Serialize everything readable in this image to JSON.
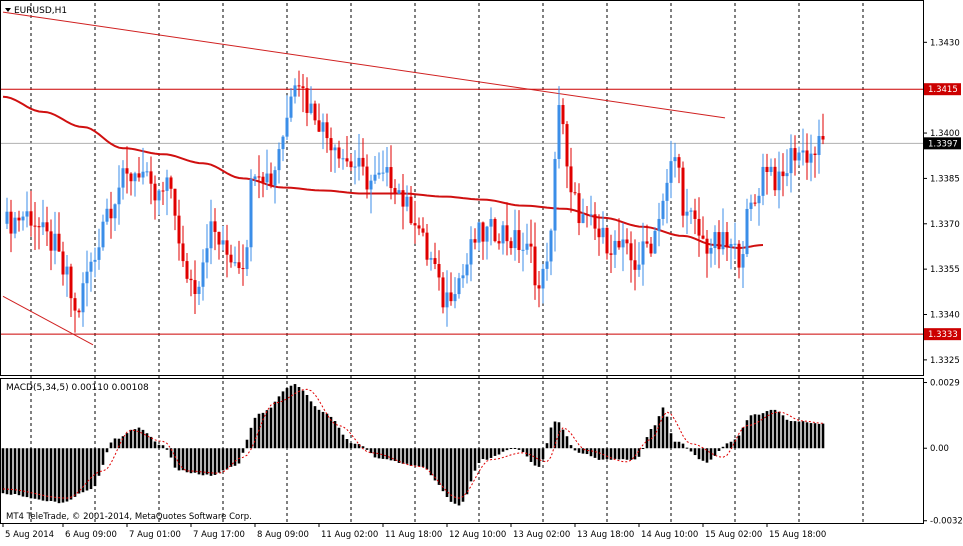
{
  "chart_data": {
    "type": "candlestick",
    "symbol_label": "EURUSD,H1",
    "copyright": "MT4 TeleTrade, © 2001-2014, MetaQuotes Software Corp.",
    "colors": {
      "bull": "#3b8ee8",
      "bear": "#e00000",
      "ma": "#d01010",
      "level": "#cc0000",
      "trendline": "#d02020",
      "current_line": "#b0b0b0",
      "grid": "#000000",
      "macd_bar": "#000000",
      "macd_signal": "#e00000"
    },
    "price_axis": {
      "ylim": [
        1.332,
        1.3443
      ],
      "ticks": [
        "1.3430",
        "1.3415",
        "1.3400",
        "1.3385",
        "1.3370",
        "1.3355",
        "1.3340",
        "1.3325"
      ],
      "tick_values": [
        1.343,
        1.3415,
        1.34,
        1.3385,
        1.337,
        1.3355,
        1.334,
        1.3325
      ]
    },
    "price_labels": [
      {
        "text": "1.3415",
        "value": 1.34145,
        "style": "red"
      },
      {
        "text": "1.3397",
        "value": 1.33966,
        "style": "black"
      },
      {
        "text": "1.3333",
        "value": 1.33335,
        "style": "red"
      }
    ],
    "horizontal_levels": [
      1.34145,
      1.33335
    ],
    "current_price": 1.33966,
    "trendlines": [
      {
        "bar": [
          0,
          180
        ],
        "price": [
          1.344,
          1.3405
        ]
      },
      {
        "bar": [
          0,
          22
        ],
        "price": [
          1.3346,
          1.333
        ]
      }
    ],
    "time_axis": {
      "labels": [
        "5 Aug 2014",
        "6 Aug 09:00",
        "7 Aug 01:00",
        "7 Aug 17:00",
        "8 Aug 09:00",
        "11 Aug 02:00",
        "11 Aug 18:00",
        "12 Aug 10:00",
        "13 Aug 02:00",
        "13 Aug 18:00",
        "14 Aug 10:00",
        "15 Aug 02:00",
        "15 Aug 18:00"
      ],
      "label_bars": [
        0,
        15,
        31,
        47,
        63,
        79,
        95,
        111,
        127,
        143,
        159,
        175,
        191
      ],
      "grid_bars": [
        7,
        23,
        39,
        55,
        71,
        87,
        103,
        119,
        135,
        151,
        167,
        183,
        199,
        215
      ]
    },
    "ma_points": [
      [
        0,
        1.3412
      ],
      [
        10,
        1.3407
      ],
      [
        20,
        1.3402
      ],
      [
        30,
        1.3395
      ],
      [
        40,
        1.3393
      ],
      [
        50,
        1.339
      ],
      [
        60,
        1.3385
      ],
      [
        70,
        1.3382
      ],
      [
        80,
        1.3381
      ],
      [
        90,
        1.338
      ],
      [
        100,
        1.338
      ],
      [
        110,
        1.3379
      ],
      [
        120,
        1.3378
      ],
      [
        130,
        1.3376
      ],
      [
        140,
        1.3375
      ],
      [
        150,
        1.3372
      ],
      [
        160,
        1.3369
      ],
      [
        170,
        1.3366
      ],
      [
        178,
        1.3363
      ],
      [
        184,
        1.3362
      ],
      [
        190,
        1.3363
      ]
    ],
    "candle_anchors": [
      [
        0,
        1.337
      ],
      [
        6,
        1.3373
      ],
      [
        12,
        1.3364
      ],
      [
        16,
        1.3352
      ],
      [
        18,
        1.334
      ],
      [
        22,
        1.3356
      ],
      [
        26,
        1.3375
      ],
      [
        30,
        1.3384
      ],
      [
        34,
        1.3388
      ],
      [
        38,
        1.3378
      ],
      [
        42,
        1.3382
      ],
      [
        45,
        1.3355
      ],
      [
        48,
        1.335
      ],
      [
        52,
        1.3368
      ],
      [
        56,
        1.336
      ],
      [
        60,
        1.3358
      ],
      [
        63,
        1.339
      ],
      [
        67,
        1.3385
      ],
      [
        70,
        1.34
      ],
      [
        73,
        1.342
      ],
      [
        77,
        1.3408
      ],
      [
        82,
        1.3398
      ],
      [
        87,
        1.339
      ],
      [
        92,
        1.3384
      ],
      [
        97,
        1.3385
      ],
      [
        102,
        1.3374
      ],
      [
        107,
        1.3358
      ],
      [
        110,
        1.3345
      ],
      [
        114,
        1.3352
      ],
      [
        119,
        1.3366
      ],
      [
        124,
        1.3368
      ],
      [
        128,
        1.3364
      ],
      [
        132,
        1.336
      ],
      [
        134,
        1.3348
      ],
      [
        137,
        1.3365
      ],
      [
        139,
        1.3412
      ],
      [
        142,
        1.3378
      ],
      [
        146,
        1.337
      ],
      [
        150,
        1.3365
      ],
      [
        154,
        1.3362
      ],
      [
        158,
        1.3357
      ],
      [
        162,
        1.3364
      ],
      [
        165,
        1.3378
      ],
      [
        168,
        1.3392
      ],
      [
        171,
        1.3372
      ],
      [
        176,
        1.3363
      ],
      [
        180,
        1.3363
      ],
      [
        184,
        1.336
      ],
      [
        187,
        1.3375
      ],
      [
        191,
        1.339
      ],
      [
        194,
        1.3383
      ],
      [
        198,
        1.3394
      ],
      [
        202,
        1.3393
      ],
      [
        205,
        1.33966
      ]
    ],
    "total_bars": 206,
    "macd": {
      "label": "MACD(5,34,5) 0.00110 0.00108",
      "ylim": [
        -0.0033,
        0.0031
      ],
      "ticks": [
        "0.0029",
        "0.00",
        "-0.0032"
      ],
      "tick_values": [
        0.0029,
        0.0,
        -0.0032
      ],
      "hist_anchors": [
        [
          0,
          -0.002
        ],
        [
          15,
          -0.0024
        ],
        [
          22,
          -0.0018
        ],
        [
          28,
          0.0004
        ],
        [
          34,
          0.0009
        ],
        [
          40,
          0.0001
        ],
        [
          44,
          -0.001
        ],
        [
          52,
          -0.0012
        ],
        [
          58,
          -0.0008
        ],
        [
          64,
          0.0015
        ],
        [
          73,
          0.0028
        ],
        [
          80,
          0.0016
        ],
        [
          88,
          0.0002
        ],
        [
          95,
          -0.0005
        ],
        [
          104,
          -0.0008
        ],
        [
          114,
          -0.0025
        ],
        [
          120,
          -0.0005
        ],
        [
          128,
          0.0
        ],
        [
          134,
          -0.0008
        ],
        [
          138,
          0.0012
        ],
        [
          144,
          -0.0002
        ],
        [
          150,
          -0.0005
        ],
        [
          158,
          -0.0005
        ],
        [
          163,
          0.001
        ],
        [
          165,
          0.0018
        ],
        [
          168,
          0.0003
        ],
        [
          176,
          -0.0006
        ],
        [
          182,
          0.0003
        ],
        [
          188,
          0.0015
        ],
        [
          193,
          0.0017
        ],
        [
          197,
          0.0012
        ],
        [
          205,
          0.0011
        ]
      ],
      "signal_anchors": [
        [
          0,
          -0.0018
        ],
        [
          16,
          -0.0022
        ],
        [
          25,
          -0.001
        ],
        [
          32,
          0.0008
        ],
        [
          40,
          0.0003
        ],
        [
          46,
          -0.001
        ],
        [
          54,
          -0.0011
        ],
        [
          60,
          -0.0004
        ],
        [
          68,
          0.002
        ],
        [
          76,
          0.0026
        ],
        [
          84,
          0.001
        ],
        [
          92,
          -0.0002
        ],
        [
          104,
          -0.0008
        ],
        [
          114,
          -0.0022
        ],
        [
          122,
          -0.0005
        ],
        [
          130,
          -0.0002
        ],
        [
          136,
          -0.0006
        ],
        [
          140,
          0.0009
        ],
        [
          146,
          -0.0001
        ],
        [
          156,
          -0.0006
        ],
        [
          162,
          0.0004
        ],
        [
          166,
          0.0016
        ],
        [
          172,
          0.0002
        ],
        [
          180,
          -0.0004
        ],
        [
          186,
          0.001
        ],
        [
          194,
          0.0016
        ],
        [
          200,
          0.0012
        ],
        [
          205,
          0.0011
        ]
      ]
    }
  }
}
